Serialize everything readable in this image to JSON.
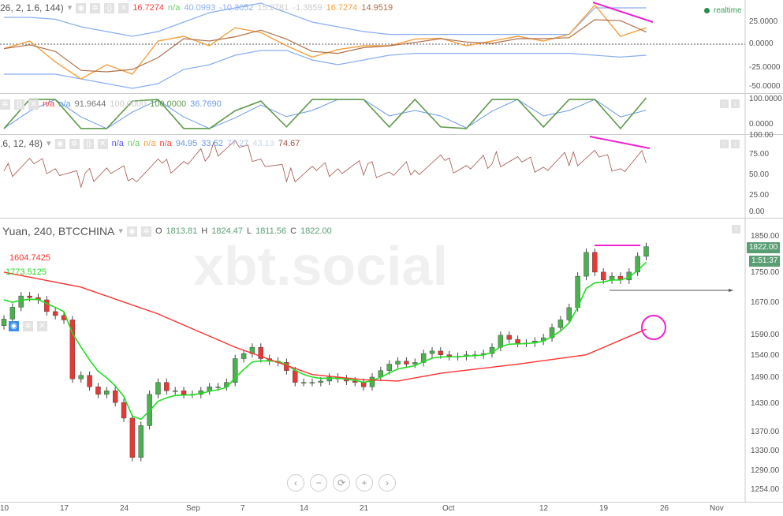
{
  "panes": {
    "osc1": {
      "params": "26, 2, 1.6, 144)",
      "values": [
        {
          "text": "16.7274",
          "color": "#ff4040"
        },
        {
          "text": "n/a",
          "color": "#6ccf6c"
        },
        {
          "text": "40.0993",
          "color": "#8aaef0"
        },
        {
          "text": "-10.3052",
          "color": "#8aaef0"
        },
        {
          "text": "15.2781",
          "color": "#ccc"
        },
        {
          "text": "-1.3859",
          "color": "#ccc"
        },
        {
          "text": "16.7274",
          "color": "#f5a040"
        },
        {
          "text": "14.9519",
          "color": "#b0704a"
        }
      ],
      "realtime": "realtime",
      "ticks": [
        "25.0000",
        "0.0000",
        "-25.0000",
        "-50.0000"
      ]
    },
    "osc2": {
      "values": [
        {
          "text": "n/a",
          "color": "#ff4040"
        },
        {
          "text": "n/a",
          "color": "#6a9ae8"
        },
        {
          "text": "91.9644",
          "color": "#777"
        },
        {
          "text": "100.0000",
          "color": "#ccc"
        },
        {
          "text": "100.0000",
          "color": "#5f9a4a"
        },
        {
          "text": "36.7690",
          "color": "#6a9ae8"
        }
      ],
      "ticks": [
        "100.0000",
        "0.0000"
      ]
    },
    "osc3": {
      "params": ".6, 12, 48)",
      "values": [
        {
          "text": "n/a",
          "color": "#5555ee"
        },
        {
          "text": "n/a",
          "color": "#6ccf6c"
        },
        {
          "text": "n/a",
          "color": "#f5a040"
        },
        {
          "text": "n/a",
          "color": "#ff4040"
        },
        {
          "text": "94.95",
          "color": "#6a9ae8"
        },
        {
          "text": "33.52",
          "color": "#6a9ae8"
        },
        {
          "text": "77.27",
          "color": "#aac4ee"
        },
        {
          "text": "43.13",
          "color": "#c8d8f0"
        },
        {
          "text": "74.67",
          "color": "#a0524a"
        }
      ],
      "ticks": [
        "100.00",
        "75.00",
        "50.00",
        "25.00",
        "0.00"
      ]
    },
    "main": {
      "symbol": "Yuan, 240, BTCCHINA",
      "ohlc": [
        {
          "k": "O",
          "v": "1813.81"
        },
        {
          "k": "H",
          "v": "1824.47"
        },
        {
          "k": "L",
          "v": "1811.56"
        },
        {
          "k": "C",
          "v": "1822.00"
        }
      ],
      "ma_red_label": "1604.7425",
      "ma_green_label": "1773.5125",
      "last_price": "1822.00",
      "countdown": "1:51:37",
      "watermark": "xbt.social"
    }
  },
  "nav_buttons": [
    "‹",
    "−",
    "⟳",
    "+",
    "›"
  ],
  "colors": {
    "up": "#4caf50",
    "down": "#e53935",
    "ma_green": "#22dd22",
    "ma_red": "#ff3030",
    "annotation": "#ee22cc",
    "tag": "#5a9e74"
  },
  "chart_data": {
    "type": "candlestick",
    "scale": "log",
    "ylim": [
      1254,
      1850
    ],
    "yticks": [
      "1850.00",
      "1750.00",
      "1670.00",
      "1590.00",
      "1540.00",
      "1490.00",
      "1430.00",
      "1370.00",
      "1330.00",
      "1290.00",
      "1254.00"
    ],
    "xticks": [
      "10",
      "17",
      "24",
      "Sep",
      "7",
      "14",
      "21",
      "Oct",
      "12",
      "19",
      "26",
      "Nov"
    ],
    "start_date": "Aug 10",
    "close": [
      1630,
      1660,
      1689,
      1685,
      1679,
      1649,
      1639,
      1628,
      1487,
      1495,
      1469,
      1452,
      1460,
      1434,
      1400,
      1318,
      1384,
      1452,
      1479,
      1460,
      1460,
      1452,
      1452,
      1460,
      1469,
      1469,
      1479,
      1534,
      1546,
      1561,
      1534,
      1528,
      1525,
      1506,
      1479,
      1479,
      1479,
      1482,
      1491,
      1487,
      1482,
      1479,
      1469,
      1491,
      1506,
      1521,
      1528,
      1521,
      1525,
      1546,
      1552,
      1543,
      1539,
      1539,
      1543,
      1543,
      1546,
      1561,
      1590,
      1580,
      1571,
      1571,
      1576,
      1584,
      1609,
      1628,
      1659,
      1741,
      1806,
      1752,
      1731,
      1741,
      1731,
      1752,
      1795,
      1822
    ],
    "ma_red": [
      1752,
      1712,
      1643,
      1561,
      1497,
      1485,
      1482,
      1500,
      1521,
      1543,
      1605
    ],
    "osc1": {
      "ylim": [
        -50,
        45
      ],
      "fast": [
        -3,
        5,
        -17,
        -35,
        -20,
        -30,
        5,
        10,
        0,
        19,
        14,
        0,
        -12,
        -4,
        0,
        0,
        7,
        8,
        0,
        5,
        10,
        5,
        12,
        43,
        10,
        19
      ],
      "upper": [
        30,
        30,
        28,
        20,
        15,
        10,
        15,
        25,
        35,
        40,
        45,
        35,
        25,
        20,
        15,
        12,
        12,
        12,
        12,
        12,
        12,
        12,
        12,
        40,
        40,
        40
      ],
      "lower": [
        -30,
        -30,
        -30,
        -35,
        -40,
        -45,
        -40,
        -25,
        -20,
        -10,
        -5,
        -5,
        -15,
        -20,
        -15,
        -10,
        -8,
        -8,
        -8,
        -8,
        -8,
        -8,
        -8,
        -10,
        -12,
        -10
      ]
    },
    "osc2": {
      "ylim": [
        0,
        100
      ],
      "k": [
        5,
        95,
        95,
        5,
        5,
        90,
        95,
        5,
        5,
        60,
        90,
        10,
        95,
        95,
        95,
        10,
        95,
        10,
        5,
        95,
        95,
        10,
        95,
        95,
        5,
        100
      ]
    },
    "osc3": {
      "ylim": [
        0,
        100
      ],
      "v": [
        55,
        65,
        60,
        45,
        55,
        50,
        60,
        65,
        80,
        85,
        70,
        50,
        55,
        60,
        60,
        50,
        60,
        65,
        60,
        70,
        65,
        60,
        70,
        75,
        60,
        75
      ]
    }
  }
}
